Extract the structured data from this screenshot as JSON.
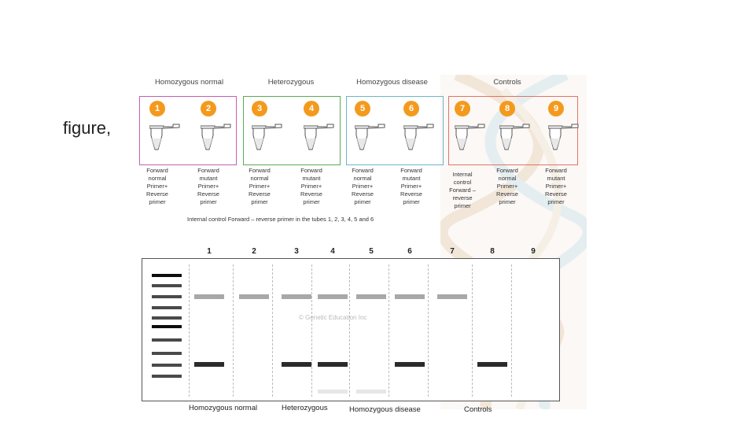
{
  "slide": {
    "text": "figure,"
  },
  "groups": [
    {
      "title": "Homozygous normal",
      "color": "#c45fb3"
    },
    {
      "title": "Heterozygous",
      "color": "#5aaa55"
    },
    {
      "title": "Homozygous disease",
      "color": "#6ab6c9"
    },
    {
      "title": "Controls",
      "color": "#e0736a"
    }
  ],
  "tubes": [
    {
      "num": "1",
      "label": "Forward\nnormal\nPrimer+\nReverse\nprimer"
    },
    {
      "num": "2",
      "label": "Forward\nmutant\nPrimer+\nReverse\nprimer"
    },
    {
      "num": "3",
      "label": "Forward\nnormal\nPrimer+\nReverse\nprimer"
    },
    {
      "num": "4",
      "label": "Forward\nmutant\nPrimer+\nReverse\nprimer"
    },
    {
      "num": "5",
      "label": "Forward\nnormal\nPrimer+\nReverse\nprimer"
    },
    {
      "num": "6",
      "label": "Forward\nmutant\nPrimer+\nReverse\nprimer"
    },
    {
      "num": "7",
      "label": "Internal\ncontrol\nForward –\nreverse\nprimer"
    },
    {
      "num": "8",
      "label": "Forward\nnormal\nPrimer+\nReverse\nprimer"
    },
    {
      "num": "9",
      "label": "Forward\nmutant\nPrimer+\nReverse\nprimer"
    }
  ],
  "note": "Internal control Forward – reverse primer in the tubes 1, 2, 3, 4, 5 and 6",
  "gel": {
    "lanes": [
      "1",
      "2",
      "3",
      "4",
      "5",
      "6",
      "7",
      "8",
      "9"
    ],
    "watermark": "© Genetic Education Inc",
    "bottom_labels": [
      "Homozygous normal",
      "Heterozygous",
      "Homozygous disease",
      "Controls"
    ],
    "upper_band_lanes": [
      true,
      true,
      true,
      true,
      true,
      true,
      true,
      false,
      false
    ],
    "lower_band_lanes": [
      true,
      false,
      true,
      true,
      false,
      true,
      false,
      true,
      false
    ],
    "faint_band_lanes": [
      false,
      false,
      false,
      true,
      true,
      false,
      false,
      false,
      false
    ],
    "colors": {
      "upper": "#a8a8a8",
      "lower": "#2b2b2b",
      "faint": "#e6e6e6"
    }
  }
}
